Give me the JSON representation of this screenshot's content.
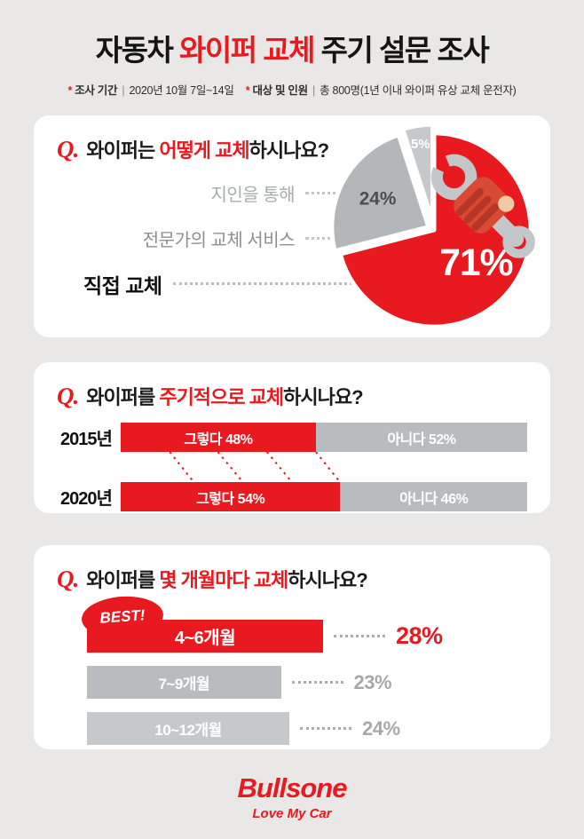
{
  "colors": {
    "accent": "#e8191f",
    "bar_gray": "#b9bcbe",
    "bar_light_gray": "#c6c9cb",
    "background": "#e9e8e6"
  },
  "header": {
    "title_pre": "자동차 ",
    "title_hl": "와이퍼 교체",
    "title_post": " 주기 설문 조사",
    "meta": [
      {
        "star": "*",
        "label": "조사 기간",
        "divider": "|",
        "value": "2020년 10월 7일~14일"
      },
      {
        "star": "*",
        "label": "대상 및 인원",
        "divider": "|",
        "value": "총 800명(1년 이내 와이퍼 유상 교체 운전자)"
      }
    ]
  },
  "cards": [
    {
      "q": "Q.",
      "pre": "와이퍼는 ",
      "hl": "어떻게 교체",
      "post": "하시나요?",
      "legend": [
        "지인을 통해",
        "전문가의 교체 서비스",
        "직접 교체"
      ]
    },
    {
      "q": "Q.",
      "pre": "와이퍼를 ",
      "hl": "주기적으로 교체",
      "post": "하시나요?"
    },
    {
      "q": "Q.",
      "pre": "와이퍼를 ",
      "hl": "몇 개월마다 교체",
      "post": "하시나요?",
      "best_label": "BEST!"
    }
  ],
  "chart_data": [
    {
      "type": "pie",
      "question": "와이퍼는 어떻게 교체하시나요?",
      "labels": [
        "직접 교체",
        "전문가의 교체 서비스",
        "지인을 통해"
      ],
      "values": [
        71,
        24,
        5
      ],
      "value_labels": [
        "71%",
        "24%",
        "5%"
      ],
      "colors": [
        "#e8191f",
        "#b4b7b9",
        "#c6c9cb"
      ],
      "legend_position": "left"
    },
    {
      "type": "bar",
      "subtype": "stacked-horizontal",
      "question": "와이퍼를 주기적으로 교체하시나요?",
      "categories": [
        "2015년",
        "2020년"
      ],
      "series": [
        {
          "name": "그렇다",
          "values": [
            48,
            54
          ],
          "color": "#e8191f"
        },
        {
          "name": "아니다",
          "values": [
            52,
            46
          ],
          "color": "#b9bcbe"
        }
      ],
      "unit": "%"
    },
    {
      "type": "bar",
      "subtype": "horizontal",
      "question": "와이퍼를 몇 개월마다 교체하시나요?",
      "categories": [
        "4~6개월",
        "7~9개월",
        "10~12개월"
      ],
      "values": [
        28,
        23,
        24
      ],
      "value_labels": [
        "28%",
        "23%",
        "24%"
      ],
      "colors": [
        "#e8191f",
        "#b9bcbe",
        "#c6c9cb"
      ],
      "best_index": 0
    }
  ],
  "footer": {
    "logo": "Bullsone",
    "tagline": "Love My Car"
  }
}
